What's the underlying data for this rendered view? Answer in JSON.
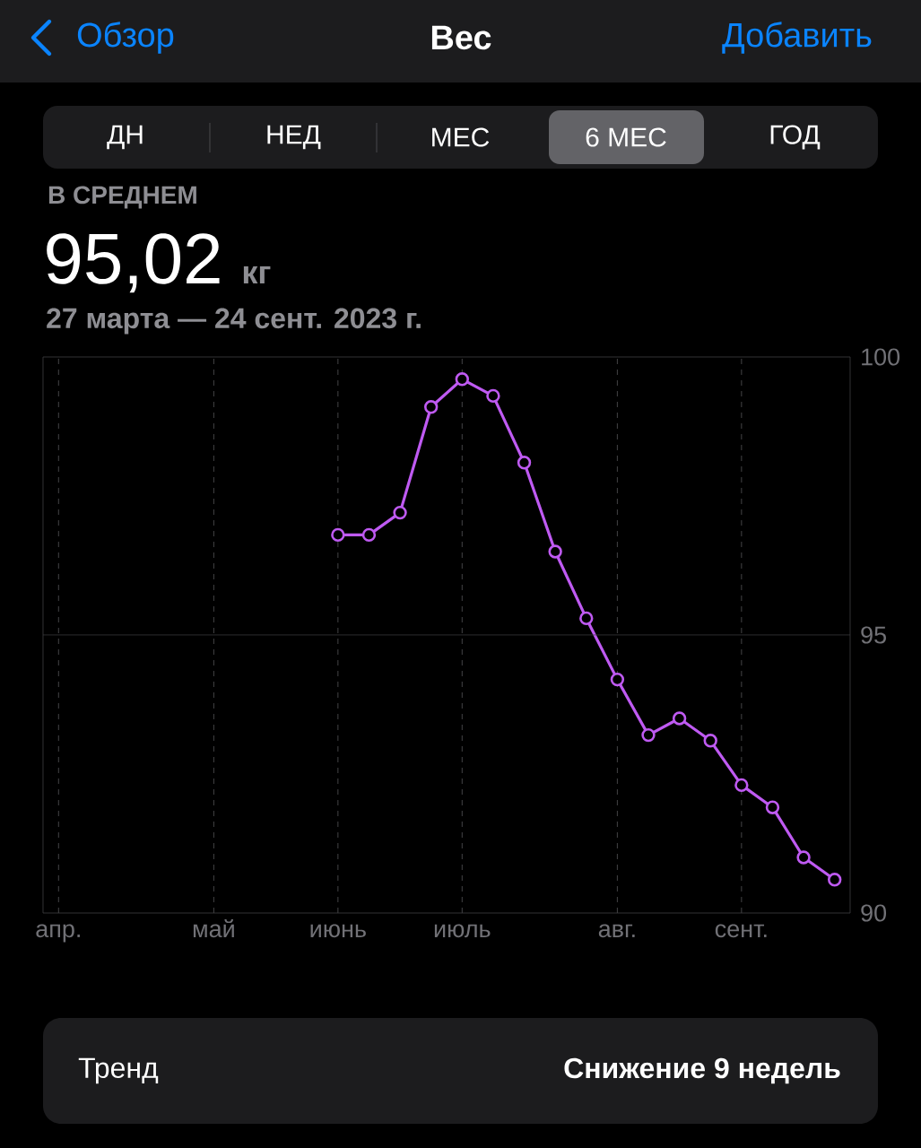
{
  "chart_data": {
    "type": "line",
    "title": "Вес",
    "annotations": [
      "Обзор",
      "Добавить",
      "ДН",
      "НЕД",
      "МЕС",
      "6 МЕС",
      "ГОД",
      "В СРЕДНЕМ",
      "95,02",
      "кг",
      "27 марта — 24 сент. 2023 г.",
      "Тренд",
      "Снижение 9 недель"
    ],
    "categories": [
      "апр.",
      null,
      null,
      null,
      null,
      "май",
      null,
      null,
      null,
      "июнь",
      null,
      null,
      null,
      "июль",
      null,
      null,
      null,
      null,
      "авг.",
      null,
      null,
      null,
      "сент.",
      null,
      null,
      null
    ],
    "values": [
      null,
      null,
      null,
      null,
      null,
      null,
      null,
      null,
      null,
      96.8,
      96.8,
      97.2,
      99.1,
      99.6,
      99.3,
      98.1,
      96.5,
      95.3,
      94.2,
      93.2,
      93.5,
      93.1,
      92.3,
      91.9,
      91.0,
      90.6
    ],
    "color": "#bf5af2",
    "marker": "circle",
    "line_style": "solid",
    "grid": "x",
    "ref_lines": [
      {
        "axis": "y",
        "value": 95,
        "color": "#404042"
      }
    ],
    "ylim": [
      90,
      100
    ],
    "yticks": [
      90,
      95,
      100
    ]
  }
}
